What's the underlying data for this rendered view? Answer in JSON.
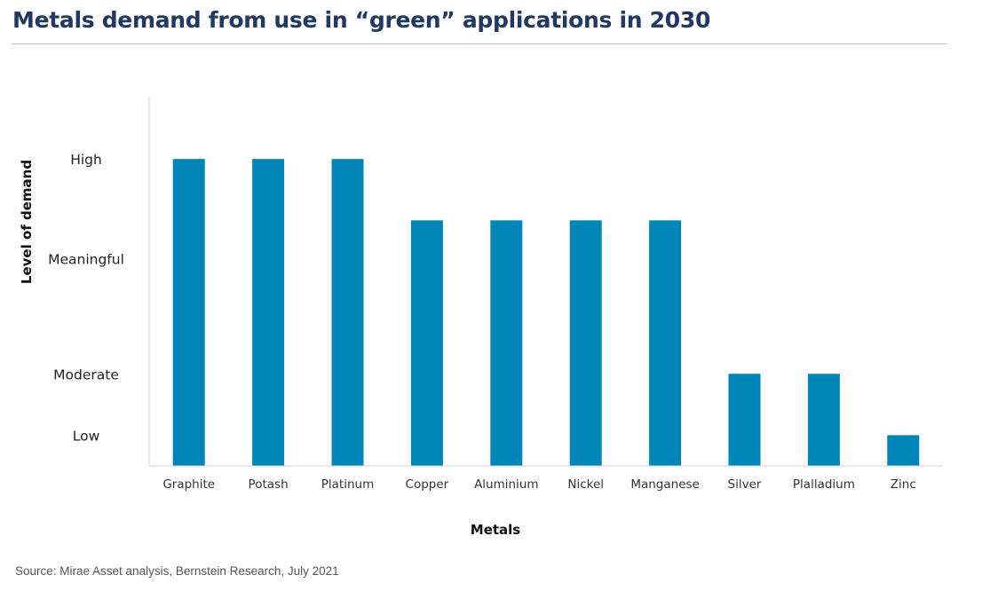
{
  "header": {
    "title": "Metals demand from use in “green” applications in 2030"
  },
  "footer": {
    "source": "Source: Mirae Asset analysis, Bernstein Research, July 2021"
  },
  "chart_data": {
    "type": "bar",
    "xlabel": "Metals",
    "ylabel": "Level of demand",
    "categories": [
      "Graphite",
      "Potash",
      "Platinum",
      "Copper",
      "Aluminium",
      "Nickel",
      "Manganese",
      "Silver",
      "Plalladium",
      "Zinc"
    ],
    "values": [
      4,
      4,
      4,
      3.2,
      3.2,
      3.2,
      3.2,
      1.2,
      1.2,
      0.4
    ],
    "y_tick_labels": [
      {
        "label": "High",
        "value": 4
      },
      {
        "label": "Meaningful",
        "value": 2.7
      },
      {
        "label": "Moderate",
        "value": 1.2
      },
      {
        "label": "Low",
        "value": 0.4
      }
    ],
    "ylim": [
      0,
      4.8
    ],
    "bar_color": "#0085b8",
    "axis_color": "#d0d0d0",
    "grid": false,
    "legend": "none"
  }
}
